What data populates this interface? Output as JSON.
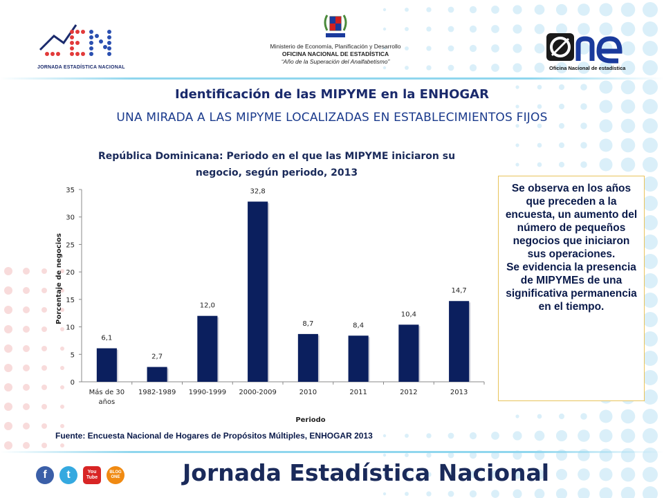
{
  "header": {
    "left_logo_caption": "JORNADA ESTADÍSTICA NACIONAL",
    "ministry_lines": [
      "Ministerio de Economía, Planificación y Desarrollo",
      "OFICINA NACIONAL DE ESTADÍSTICA",
      "“Año de la Superación del Analfabetismo”"
    ],
    "right_logo_caption": "Oficina Nacional de estadística"
  },
  "slide": {
    "title": "Identificación de las MIPYME en la ENHOGAR",
    "subtitle": "UNA MIRADA A LAS MIPYME LOCALIZADAS EN ESTABLECIMIENTOS FIJOS"
  },
  "chart_data": {
    "type": "bar",
    "title_lines": [
      "República Dominicana: Periodo en el que las MIPYME iniciaron su",
      "negocio, según periodo, 2013"
    ],
    "categories": [
      [
        "Más de 30",
        "años"
      ],
      [
        "1982-1989"
      ],
      [
        "1990-1999"
      ],
      [
        "2000-2009"
      ],
      [
        "2010"
      ],
      [
        "2011"
      ],
      [
        "2012"
      ],
      [
        "2013"
      ]
    ],
    "values": [
      6.1,
      2.7,
      12.0,
      32.8,
      8.7,
      8.4,
      10.4,
      14.7
    ],
    "data_labels": [
      "6,1",
      "2,7",
      "12,0",
      "32,8",
      "8,7",
      "8,4",
      "10,4",
      "14,7"
    ],
    "xlabel": "Periodo",
    "ylabel": "Porcentaje de negocios",
    "ylim": [
      0,
      35
    ],
    "yticks": [
      0,
      5,
      10,
      15,
      20,
      25,
      30,
      35
    ],
    "grid": false,
    "bar_color": "#0b1f5e"
  },
  "callout": {
    "paragraphs": [
      "Se observa en los años que preceden a la encuesta, un aumento del número de pequeños negocios que iniciaron sus operaciones.",
      "Se evidencia la presencia de MIPYMEs de una significativa permanencia en el tiempo."
    ]
  },
  "source": "Fuente: Encuesta Nacional de Hogares de Propósitos Múltiples, ENHOGAR 2013",
  "footer": {
    "title": "Jornada Estadística Nacional",
    "social": {
      "facebook": "f",
      "twitter": "t",
      "youtube": "You Tube",
      "blog": "BLOG ONE"
    }
  },
  "colors": {
    "accent": "#1a2a6c",
    "dots": "#cdeaf7",
    "callout_border": "#e8c35a"
  }
}
